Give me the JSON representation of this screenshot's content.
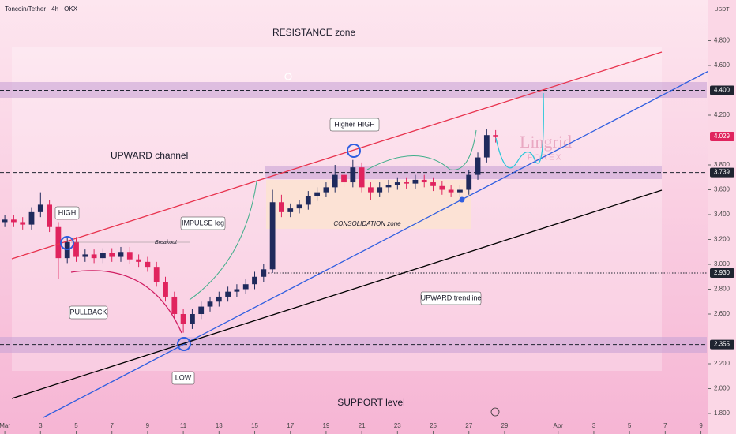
{
  "chart_data": {
    "type": "candlestick",
    "title": "Toncoin/Tether · 4h · OKX",
    "y_axis_label": "USDT",
    "watermark": [
      "Lingrid",
      "FOREX"
    ],
    "annotations": [
      "RESISTANCE zone",
      "UPWARD channel",
      "HIGH",
      "Breakout",
      "IMPULSE leg",
      "PULLBACK",
      "LOW",
      "Higher HIGH",
      "CONSOLIDATION zone",
      "UPWARD trendline",
      "SUPPORT level"
    ],
    "up_color": "#1f2a5c",
    "down_color": "#e0245e",
    "x": [
      1,
      1.5,
      2,
      2.5,
      3,
      3.5,
      4,
      4.5,
      5,
      5.5,
      6,
      6.5,
      7,
      7.5,
      8,
      8.5,
      9,
      9.5,
      10,
      10.5,
      11,
      11.5,
      12,
      12.5,
      13,
      13.5,
      14,
      14.5,
      15,
      15.5,
      16,
      16.5,
      17,
      17.5,
      18,
      18.5,
      19,
      19.5,
      20,
      20.5,
      21,
      21.5,
      22,
      22.5,
      23,
      23.5,
      24,
      24.5,
      25,
      25.5,
      26,
      26.5,
      27,
      27.5,
      28,
      28.5
    ],
    "open": [
      3.34,
      3.36,
      3.34,
      3.32,
      3.42,
      3.48,
      3.3,
      3.05,
      3.18,
      3.06,
      3.08,
      3.05,
      3.09,
      3.06,
      3.1,
      3.04,
      3.02,
      2.98,
      2.86,
      2.74,
      2.6,
      2.52,
      2.6,
      2.66,
      2.7,
      2.74,
      2.78,
      2.8,
      2.84,
      2.9,
      2.96,
      3.5,
      3.42,
      3.45,
      3.48,
      3.55,
      3.58,
      3.62,
      3.72,
      3.66,
      3.78,
      3.62,
      3.58,
      3.62,
      3.64,
      3.66,
      3.65,
      3.68,
      3.66,
      3.63,
      3.6,
      3.58,
      3.6,
      3.72,
      3.86,
      4.04
    ],
    "high": [
      3.4,
      3.4,
      3.38,
      3.46,
      3.58,
      3.52,
      3.34,
      3.22,
      3.22,
      3.12,
      3.12,
      3.13,
      3.13,
      3.14,
      3.14,
      3.08,
      3.06,
      3.02,
      2.9,
      2.78,
      2.64,
      2.64,
      2.7,
      2.74,
      2.78,
      2.82,
      2.84,
      2.88,
      2.94,
      3.0,
      3.6,
      3.56,
      3.49,
      3.52,
      3.59,
      3.62,
      3.66,
      3.8,
      3.76,
      3.84,
      3.82,
      3.66,
      3.66,
      3.68,
      3.7,
      3.7,
      3.72,
      3.72,
      3.7,
      3.67,
      3.64,
      3.64,
      3.76,
      3.9,
      4.09,
      4.08
    ],
    "low": [
      3.3,
      3.3,
      3.28,
      3.28,
      3.38,
      3.26,
      2.88,
      3.01,
      3.02,
      3.02,
      3.01,
      3.01,
      3.02,
      3.02,
      3.0,
      2.98,
      2.94,
      2.82,
      2.7,
      2.56,
      2.45,
      2.48,
      2.56,
      2.62,
      2.66,
      2.7,
      2.74,
      2.76,
      2.8,
      2.86,
      2.93,
      3.38,
      3.38,
      3.41,
      3.44,
      3.51,
      3.54,
      3.58,
      3.62,
      3.62,
      3.58,
      3.52,
      3.54,
      3.58,
      3.6,
      3.61,
      3.61,
      3.62,
      3.59,
      3.56,
      3.54,
      3.54,
      3.56,
      3.68,
      3.82,
      3.98
    ],
    "close": [
      3.36,
      3.34,
      3.32,
      3.42,
      3.48,
      3.3,
      3.05,
      3.18,
      3.06,
      3.08,
      3.05,
      3.09,
      3.06,
      3.1,
      3.04,
      3.02,
      2.98,
      2.86,
      2.74,
      2.6,
      2.52,
      2.6,
      2.66,
      2.7,
      2.74,
      2.78,
      2.8,
      2.84,
      2.9,
      2.96,
      3.5,
      3.42,
      3.45,
      3.48,
      3.55,
      3.58,
      3.62,
      3.72,
      3.66,
      3.78,
      3.62,
      3.58,
      3.62,
      3.64,
      3.66,
      3.65,
      3.68,
      3.66,
      3.63,
      3.6,
      3.58,
      3.6,
      3.72,
      3.86,
      4.04,
      4.03
    ],
    "xlim": [
      0.73,
      40.33
    ],
    "xticks": [
      {
        "value": 1,
        "label": "Mar"
      },
      3,
      5,
      7,
      9,
      11,
      13,
      15,
      17,
      19,
      21,
      23,
      25,
      27,
      29,
      {
        "value": 32,
        "label": "Apr"
      },
      {
        "value": 34,
        "label": "3"
      },
      {
        "value": 36,
        "label": "5"
      },
      {
        "value": 38,
        "label": "7"
      },
      {
        "value": 40,
        "label": "9"
      }
    ],
    "ylim": [
      1.635,
      5.127
    ],
    "yticks": [
      {
        "value": 1.8,
        "label": "1.800"
      },
      {
        "value": 2.0,
        "label": "2.000"
      },
      {
        "value": 2.2,
        "label": "2.200"
      },
      {
        "value": 2.6,
        "label": "2.600"
      },
      {
        "value": 2.8,
        "label": "2.800"
      },
      {
        "value": 3.0,
        "label": "3.000"
      },
      {
        "value": 3.2,
        "label": "3.200"
      },
      {
        "value": 3.4,
        "label": "3.400"
      },
      {
        "value": 3.6,
        "label": "3.600"
      },
      {
        "value": 3.8,
        "label": "3.800"
      },
      {
        "value": 4.2,
        "label": "4.200"
      },
      {
        "value": 4.6,
        "label": "4.600"
      },
      {
        "value": 4.8,
        "label": "4.800"
      }
    ],
    "levels": [
      {
        "value": 4.4,
        "label": "4.400",
        "color": "#1f2430",
        "style": "dashed"
      },
      {
        "value": 4.029,
        "label": "4.029",
        "color": "#e0245e",
        "style": "none"
      },
      {
        "value": 3.739,
        "label": "3.739",
        "color": "#1f2430",
        "style": "dashed"
      },
      {
        "value": 2.93,
        "label": "2.930",
        "color": "#1f2430",
        "style": "dotted"
      },
      {
        "value": 2.355,
        "label": "2.355",
        "color": "#1f2430",
        "style": "dashed"
      }
    ]
  }
}
